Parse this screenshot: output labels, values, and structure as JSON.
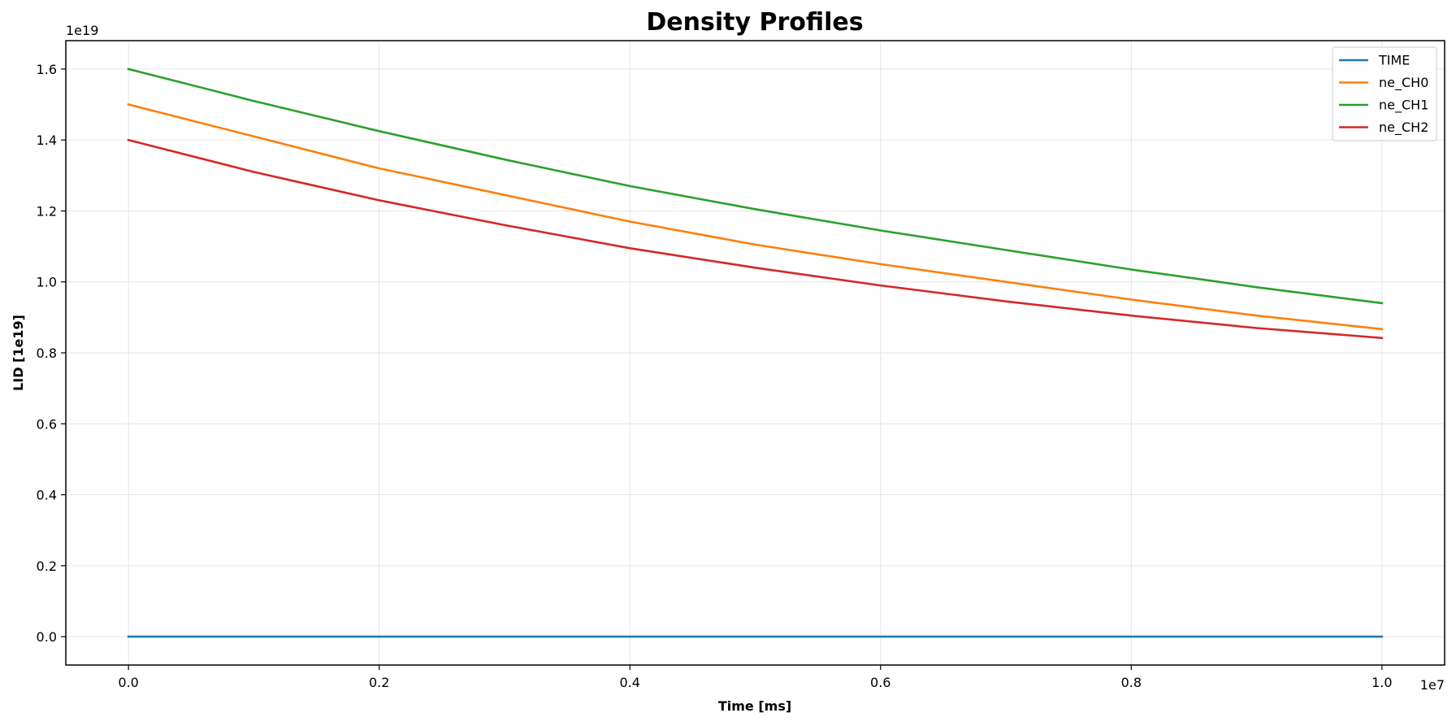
{
  "chart_data": {
    "type": "line",
    "title": "Density Profiles",
    "xlabel": "Time [ms]",
    "ylabel": "LID [1e19]",
    "x_offset_label": "1e7",
    "y_offset_label": "1e19",
    "x_scale": 10000000,
    "y_scale": 10000000000000000000,
    "xlim": [
      -0.05,
      1.05
    ],
    "ylim": [
      -0.08,
      1.68
    ],
    "x_ticks": [
      0.0,
      0.2,
      0.4,
      0.6,
      0.8,
      1.0
    ],
    "x_tick_labels": [
      "0.0",
      "0.2",
      "0.4",
      "0.6",
      "0.8",
      "1.0"
    ],
    "y_ticks": [
      0.0,
      0.2,
      0.4,
      0.6,
      0.8,
      1.0,
      1.2,
      1.4,
      1.6
    ],
    "y_tick_labels": [
      "0.0",
      "0.2",
      "0.4",
      "0.6",
      "0.8",
      "1.0",
      "1.2",
      "1.4",
      "1.6"
    ],
    "grid": true,
    "legend_position": "top-right",
    "x": [
      0.0,
      0.1,
      0.2,
      0.3,
      0.4,
      0.5,
      0.6,
      0.7,
      0.8,
      0.9,
      1.0
    ],
    "series": [
      {
        "name": "TIME",
        "color": "#1f77b4",
        "values": [
          0,
          0,
          0,
          0,
          0,
          0,
          0,
          0,
          0,
          0,
          0
        ]
      },
      {
        "name": "ne_CH0",
        "color": "#ff7f0e",
        "values": [
          1.5,
          1.41,
          1.32,
          1.245,
          1.17,
          1.105,
          1.05,
          1.0,
          0.95,
          0.905,
          0.867
        ]
      },
      {
        "name": "ne_CH1",
        "color": "#2ca02c",
        "values": [
          1.6,
          1.51,
          1.425,
          1.345,
          1.27,
          1.205,
          1.145,
          1.09,
          1.035,
          0.985,
          0.94
        ]
      },
      {
        "name": "ne_CH2",
        "color": "#d62728",
        "values": [
          1.4,
          1.31,
          1.23,
          1.16,
          1.095,
          1.04,
          0.99,
          0.945,
          0.905,
          0.87,
          0.842
        ]
      }
    ]
  }
}
